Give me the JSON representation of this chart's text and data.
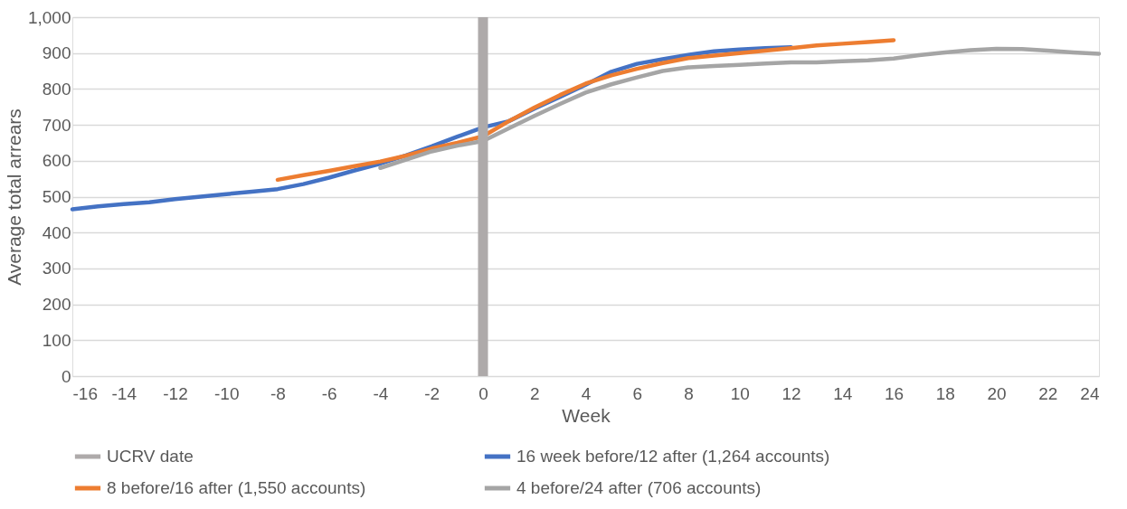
{
  "chart_data": {
    "type": "line",
    "xlabel": "Week",
    "ylabel": "Average total arrears",
    "xlim": [
      -16,
      24
    ],
    "xticks": [
      -16,
      -14,
      -12,
      -10,
      -8,
      -6,
      -4,
      -2,
      0,
      2,
      4,
      6,
      8,
      10,
      12,
      14,
      16,
      18,
      20,
      22,
      24
    ],
    "ylim": [
      0,
      1000
    ],
    "yticks": [
      0,
      100,
      200,
      300,
      400,
      500,
      600,
      700,
      800,
      900,
      {
        "value": 1000,
        "label": "1,000"
      }
    ],
    "grid": "y",
    "legend": "bottom",
    "line_style": "solid",
    "marker": "none",
    "ref_lines": [
      {
        "axis": "x",
        "value": 0,
        "label": "UCRV date",
        "color": "#aeaaaa"
      }
    ],
    "series": [
      {
        "name": "16 week before/12 after (1,264 accounts)",
        "color": "#4472c4",
        "x": [
          -16,
          -15,
          -14,
          -13,
          -12,
          -11,
          -10,
          -9,
          -8,
          -7,
          -6,
          -5,
          -4,
          -3,
          -2,
          -1,
          0,
          1,
          2,
          3,
          4,
          5,
          6,
          7,
          8,
          9,
          10,
          11,
          12
        ],
        "values": [
          465,
          473,
          479,
          484,
          493,
          500,
          507,
          514,
          521,
          535,
          553,
          573,
          592,
          615,
          640,
          667,
          693,
          710,
          745,
          778,
          812,
          848,
          870,
          883,
          895,
          905,
          910,
          914,
          916
        ]
      },
      {
        "name": "8 before/16 after (1,550 accounts)",
        "color": "#ed7d31",
        "x": [
          -8,
          -7,
          -6,
          -5,
          -4,
          -3,
          -2,
          -1,
          0,
          1,
          2,
          3,
          4,
          5,
          6,
          7,
          8,
          9,
          10,
          11,
          12,
          13,
          14,
          15,
          16
        ],
        "values": [
          547,
          560,
          572,
          585,
          598,
          614,
          634,
          650,
          668,
          710,
          748,
          783,
          815,
          838,
          856,
          872,
          886,
          893,
          900,
          907,
          914,
          921,
          926,
          931,
          936
        ]
      },
      {
        "name": "4 before/24 after (706 accounts)",
        "color": "#a5a5a5",
        "x": [
          -4,
          -3,
          -2,
          -1,
          0,
          1,
          2,
          3,
          4,
          5,
          6,
          7,
          8,
          9,
          10,
          11,
          12,
          13,
          14,
          15,
          16,
          17,
          18,
          19,
          20,
          21,
          22,
          23,
          24
        ],
        "values": [
          580,
          603,
          626,
          642,
          655,
          690,
          725,
          758,
          790,
          813,
          832,
          850,
          860,
          864,
          867,
          871,
          874,
          874,
          877,
          880,
          885,
          894,
          902,
          908,
          912,
          911,
          907,
          902,
          898
        ]
      }
    ]
  }
}
